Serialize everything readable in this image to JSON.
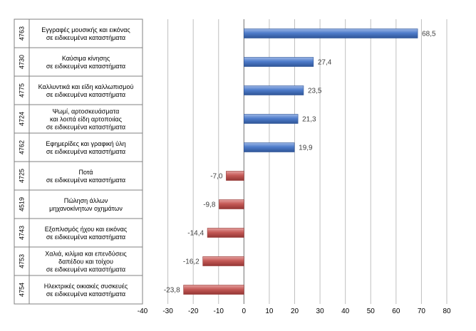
{
  "chart_data": {
    "type": "bar",
    "orientation": "horizontal",
    "title": "",
    "xlabel": "",
    "ylabel": "",
    "xlim": [
      -40,
      80
    ],
    "x_ticks": [
      -40,
      -30,
      -20,
      -10,
      0,
      10,
      20,
      30,
      40,
      50,
      60,
      70,
      80
    ],
    "grid": "vertical",
    "legend": "none",
    "colors": {
      "positive": "#4472C4",
      "negative": "#C0504D",
      "grid": "#BFBFBF",
      "axis": "#808080",
      "text": "#000000",
      "label": "#404040"
    },
    "categories": [
      {
        "code": "4763",
        "lines": [
          "Εγγραφές μουσικής και εικόνας",
          "σε ειδικευμένα καταστήματα"
        ]
      },
      {
        "code": "4730",
        "lines": [
          "Καύσιμα κίνησης",
          "σε ειδικευμένα καταστήματα"
        ]
      },
      {
        "code": "4775",
        "lines": [
          "Καλλυντικά και είδη καλλωπισμού",
          "σε ειδικευμένα καταστήματα"
        ]
      },
      {
        "code": "4724",
        "lines": [
          "Ψωμί, αρτοσκευάσματα",
          "και λοιπά είδη αρτοποιίας",
          "σε ειδικευμένα καταστήματα"
        ]
      },
      {
        "code": "4762",
        "lines": [
          "Εφημερίδες και γραφική ύλη",
          "σε ειδικευμένα καταστήματα"
        ]
      },
      {
        "code": "4725",
        "lines": [
          "Ποτά",
          "σε ειδικευμένα καταστήματα"
        ]
      },
      {
        "code": "4519",
        "lines": [
          "Πώληση άλλων",
          "μηχανοκίνητων οχημάτων"
        ]
      },
      {
        "code": "4743",
        "lines": [
          "Εξοπλισμός ήχου και εικόνας",
          "σε ειδικευμένα καταστήματα"
        ]
      },
      {
        "code": "4753",
        "lines": [
          "Χαλιά, κιλίμια και επενδύσεις",
          "δαπέδου και τοίχου",
          "σε ειδικευμένα καταστήματα"
        ]
      },
      {
        "code": "4754",
        "lines": [
          "Ηλεκτρικές οικιακές συσκευές",
          "σε ειδικευμένα καταστήματα"
        ]
      }
    ],
    "values": [
      68.5,
      27.4,
      23.5,
      21.3,
      19.9,
      -7.0,
      -9.8,
      -14.4,
      -16.2,
      -23.8
    ],
    "value_labels": [
      "68,5",
      "27,4",
      "23,5",
      "21,3",
      "19,9",
      "-7,0",
      "-9,8",
      "-14,4",
      "-16,2",
      "-23,8"
    ]
  }
}
